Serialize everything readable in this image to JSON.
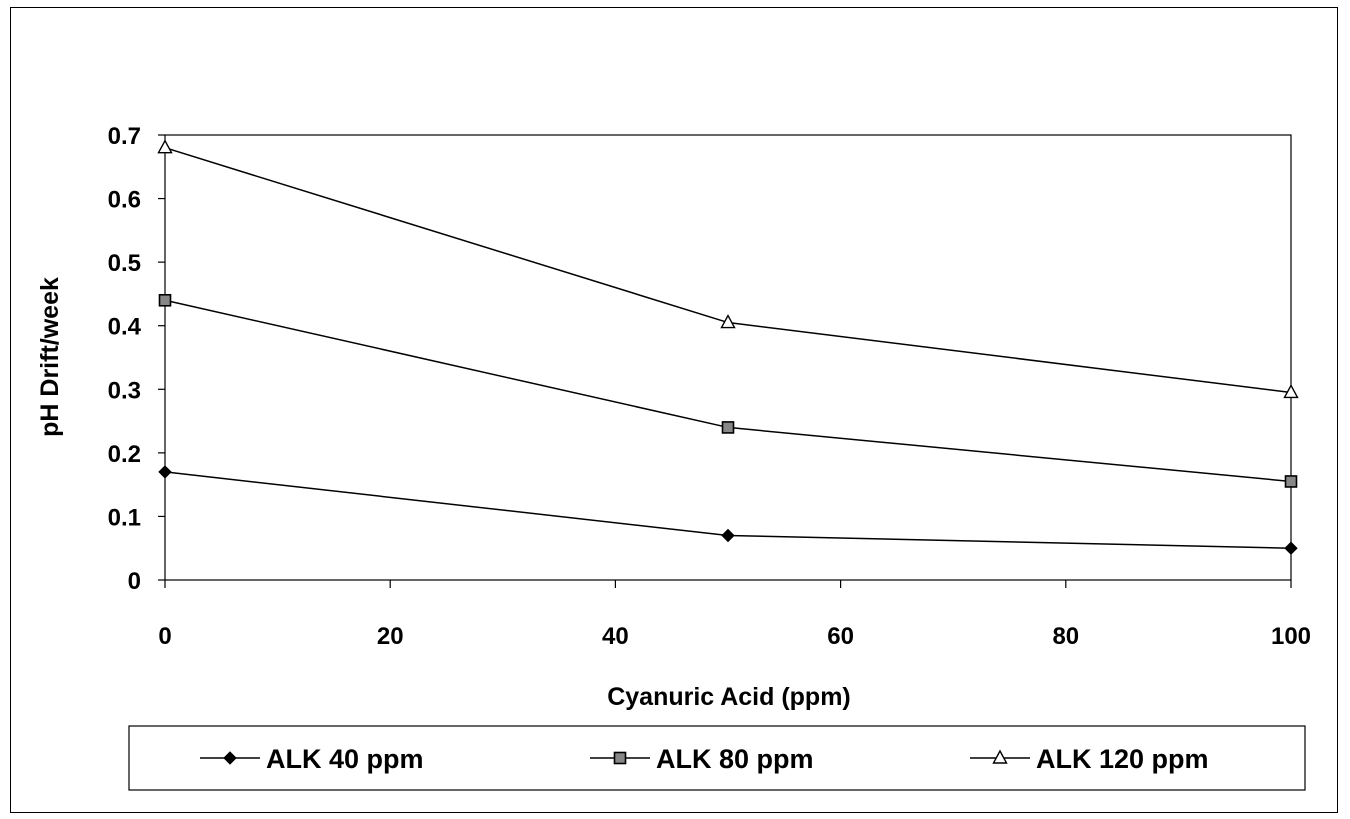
{
  "chart_data": {
    "type": "line",
    "title": "",
    "xlabel": "Cyanuric Acid (ppm)",
    "ylabel": "pH Drift/week",
    "xlim": [
      0,
      100
    ],
    "ylim": [
      0,
      0.7
    ],
    "x_ticks": [
      0,
      20,
      40,
      60,
      80,
      100
    ],
    "y_ticks": [
      0,
      0.1,
      0.2,
      0.3,
      0.4,
      0.5,
      0.6,
      0.7
    ],
    "x_tick_labels": [
      "0",
      "20",
      "40",
      "60",
      "80",
      "100"
    ],
    "y_tick_labels": [
      "0",
      "0.1",
      "0.2",
      "0.3",
      "0.4",
      "0.5",
      "0.6",
      "0.7"
    ],
    "grid": false,
    "legend_position": "bottom",
    "x": [
      0,
      50,
      100
    ],
    "series": [
      {
        "name": "ALK 40 ppm",
        "marker": "diamond",
        "values": [
          0.17,
          0.07,
          0.05
        ]
      },
      {
        "name": "ALK 80 ppm",
        "marker": "square",
        "values": [
          0.44,
          0.24,
          0.155
        ]
      },
      {
        "name": "ALK 120 ppm",
        "marker": "triangle",
        "values": [
          0.68,
          0.405,
          0.295
        ]
      }
    ]
  }
}
